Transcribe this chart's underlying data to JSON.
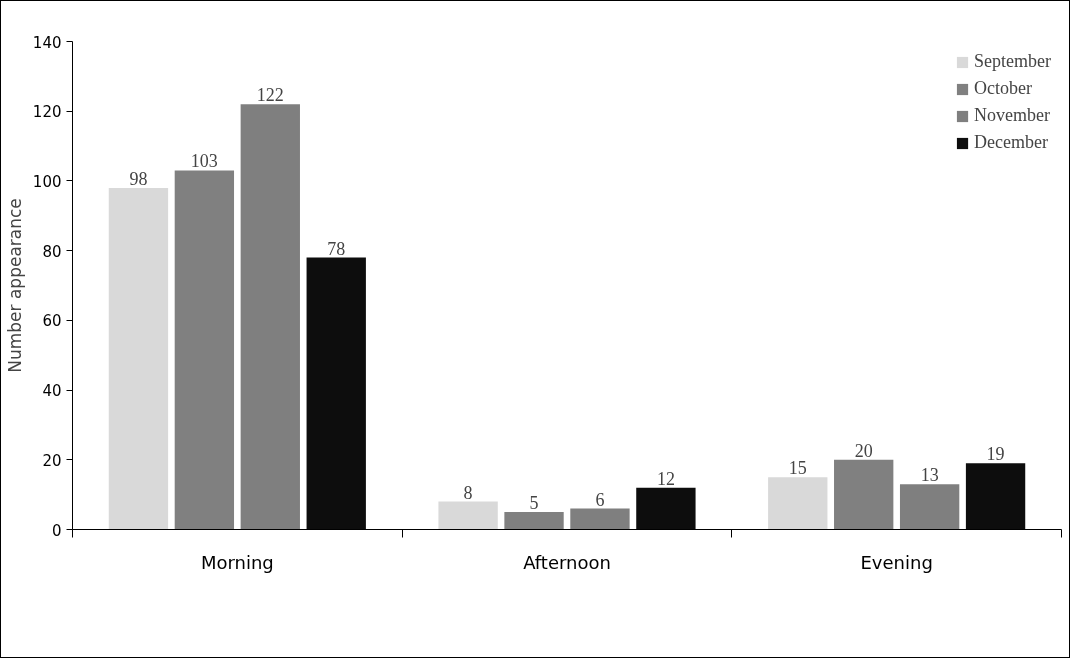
{
  "chart_data": {
    "type": "bar",
    "ylabel": "Number appearance",
    "categories": [
      "Morning",
      "Afternoon",
      "Evening"
    ],
    "series": [
      {
        "name": "September",
        "color": "#d9d9d9",
        "values": [
          98,
          8,
          15
        ]
      },
      {
        "name": "October",
        "color": "#808080",
        "values": [
          103,
          5,
          20
        ]
      },
      {
        "name": "November",
        "color": "#7f7f7f",
        "values": [
          122,
          6,
          13
        ]
      },
      {
        "name": "December",
        "color": "#0d0d0d",
        "values": [
          78,
          12,
          19
        ]
      }
    ],
    "ylim": [
      0,
      140
    ],
    "yticks": [
      0,
      20,
      40,
      60,
      80,
      100,
      120,
      140
    ],
    "grid": false,
    "legend": "top right",
    "data_labels": true
  }
}
